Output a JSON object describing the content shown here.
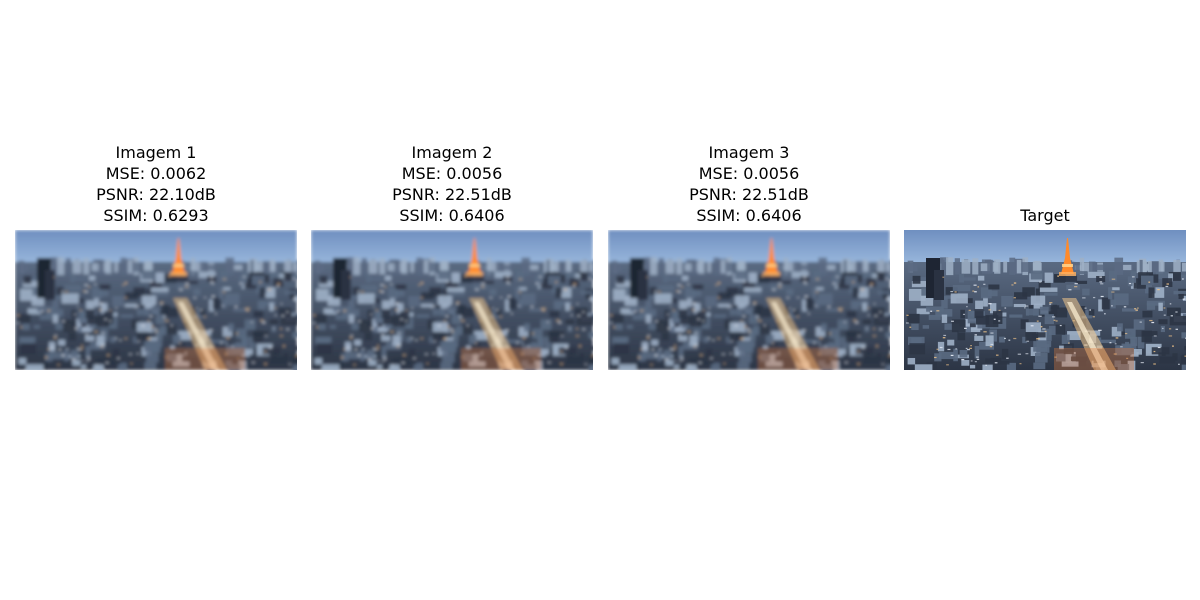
{
  "panels": [
    {
      "lines": [
        "Imagem 1",
        "MSE: 0.0062",
        "PSNR: 22.10dB",
        "SSIM: 0.6293"
      ],
      "blur": 1.6
    },
    {
      "lines": [
        "Imagem 2",
        "MSE: 0.0056",
        "PSNR: 22.51dB",
        "SSIM: 0.6406"
      ],
      "blur": 1.5
    },
    {
      "lines": [
        "Imagem 3",
        "MSE: 0.0056",
        "PSNR: 22.51dB",
        "SSIM: 0.6406"
      ],
      "blur": 1.5
    },
    {
      "lines": [
        "Target"
      ],
      "blur": 0
    }
  ],
  "colors": {
    "sky_top": "#6f8fc0",
    "sky_bottom": "#b9d6f2",
    "tower": "#ff8a2a",
    "city_dark": "#2c3545",
    "city_mid": "#5a6a82",
    "city_light": "#9fb0c6",
    "street_glow": "#f3c68a"
  }
}
